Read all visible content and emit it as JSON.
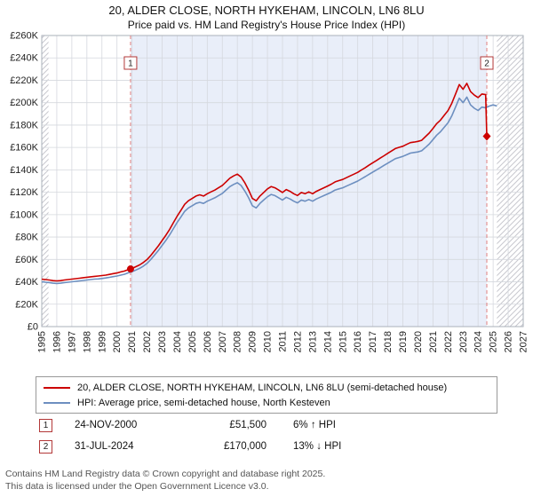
{
  "chart_data": {
    "type": "line",
    "title": "20, ALDER CLOSE, NORTH HYKEHAM, LINCOLN, LN6 8LU",
    "subtitle": "Price paid vs. HM Land Registry's House Price Index (HPI)",
    "x_range": [
      1995,
      2027
    ],
    "y_range": [
      0,
      260
    ],
    "y_unit": "GBP thousands",
    "y_tick_step": 20,
    "y_tick_labels": [
      "£0",
      "£20K",
      "£40K",
      "£60K",
      "£80K",
      "£100K",
      "£120K",
      "£140K",
      "£160K",
      "£180K",
      "£200K",
      "£220K",
      "£240K",
      "£260K"
    ],
    "x_tick_labels": [
      "1995",
      "1996",
      "1997",
      "1998",
      "1999",
      "2000",
      "2001",
      "2002",
      "2003",
      "2004",
      "2005",
      "2006",
      "2007",
      "2008",
      "2009",
      "2010",
      "2011",
      "2012",
      "2013",
      "2014",
      "2015",
      "2016",
      "2017",
      "2018",
      "2019",
      "2020",
      "2021",
      "2022",
      "2023",
      "2024",
      "2025",
      "2026",
      "2027"
    ],
    "grid": true,
    "legend_position": "bottom",
    "shaded_region": [
      2000.9,
      2024.58
    ],
    "hatched_regions": [
      [
        1995,
        1995.45
      ],
      [
        2025.25,
        2027
      ]
    ],
    "colors": {
      "property_line": "#cc0000",
      "hpi_line": "#6d8fc0",
      "shade": "#e9eef9",
      "hatch": "#c9c9cf",
      "grid": "#d5d8de",
      "plot_border": "#aab0ba",
      "dash": "#e07f7f",
      "marker": "#cc0000",
      "flag_border": "#b33838"
    },
    "series": [
      {
        "name": "20, ALDER CLOSE, NORTH HYKEHAM, LINCOLN, LN6 8LU (semi-detached house)",
        "data_name": "series-property-price",
        "color": "#cc0000",
        "x_start": 1995,
        "x_step": 0.25,
        "values": [
          42.4,
          42,
          41.6,
          41.1,
          40.8,
          41.1,
          41.6,
          42,
          42.4,
          42.8,
          43.2,
          43.7,
          44.1,
          44.5,
          44.9,
          45.2,
          45.6,
          46,
          46.6,
          47.3,
          47.9,
          48.8,
          49.6,
          50.9,
          51.9,
          53.5,
          55.1,
          57.2,
          59.9,
          63.6,
          67.8,
          72.1,
          76.9,
          81.6,
          86.9,
          92.8,
          98.6,
          103.9,
          109.2,
          112.4,
          114.5,
          116.6,
          117.7,
          116.6,
          118.7,
          120.3,
          121.9,
          124,
          126.1,
          129.3,
          132.5,
          134.6,
          136.2,
          133.6,
          128.3,
          121.9,
          114.5,
          112.4,
          116.6,
          119.8,
          123,
          125.1,
          124,
          121.9,
          119.8,
          122.4,
          120.8,
          118.7,
          117.1,
          119.8,
          118.7,
          120.3,
          118.7,
          120.8,
          122.4,
          124,
          125.6,
          127.2,
          129.3,
          130.4,
          131.4,
          133,
          134.6,
          136.2,
          137.8,
          139.9,
          142,
          144.2,
          146.3,
          148.4,
          150.5,
          152.6,
          154.8,
          156.9,
          159,
          160.1,
          161.1,
          162.7,
          164.3,
          164.8,
          165.4,
          166.4,
          169.6,
          172.8,
          177,
          181.3,
          184.4,
          188.7,
          192.9,
          199.3,
          207.8,
          216.2,
          212,
          217.3,
          209.9,
          206.7,
          204.6,
          207.8,
          207.2
        ],
        "tail": [
          [
            2024.58,
            170
          ]
        ]
      },
      {
        "name": "HPI: Average price, semi-detached house, North Kesteven",
        "data_name": "series-hpi",
        "color": "#6d8fc0",
        "x_start": 1995,
        "x_step": 0.25,
        "values": [
          40,
          39.6,
          39.2,
          38.8,
          38.5,
          38.8,
          39.2,
          39.6,
          40,
          40.4,
          40.8,
          41.2,
          41.6,
          42,
          42.4,
          42.6,
          43,
          43.4,
          44,
          44.6,
          45.2,
          46,
          46.8,
          48,
          49,
          50.5,
          52,
          54,
          56.5,
          60,
          64,
          68,
          72.5,
          77,
          82,
          87.5,
          93,
          98,
          103,
          106,
          108,
          110,
          111,
          110,
          112,
          113.5,
          115,
          117,
          119,
          122,
          125,
          127,
          128.5,
          126,
          121,
          115,
          108,
          106,
          110,
          113,
          116,
          118,
          117,
          115,
          113,
          115.5,
          114,
          112,
          110.5,
          113,
          112,
          113.5,
          112,
          114,
          115.5,
          117,
          118.5,
          120,
          122,
          123,
          124,
          125.5,
          127,
          128.5,
          130,
          132,
          134,
          136,
          138,
          140,
          142,
          144,
          146,
          148,
          150,
          151,
          152,
          153.5,
          155,
          155.5,
          156,
          157,
          160,
          163,
          167,
          171,
          174,
          178,
          182,
          188,
          196,
          204,
          200,
          205,
          198,
          195,
          193,
          196,
          195.5,
          197,
          198,
          197
        ]
      }
    ],
    "markers": [
      {
        "label": "1",
        "x": 2000.9,
        "y": 51.5,
        "shape": "circle"
      },
      {
        "label": "2",
        "x": 2024.58,
        "y": 170,
        "shape": "diamond"
      }
    ]
  },
  "legend": {
    "items": [
      {
        "label": "20, ALDER CLOSE, NORTH HYKEHAM, LINCOLN, LN6 8LU (semi-detached house)",
        "color": "#cc0000"
      },
      {
        "label": "HPI: Average price, semi-detached house, North Kesteven",
        "color": "#6d8fc0"
      }
    ]
  },
  "transactions": [
    {
      "num": "1",
      "date": "24-NOV-2000",
      "price": "£51,500",
      "delta": "6% ↑ HPI"
    },
    {
      "num": "2",
      "date": "31-JUL-2024",
      "price": "£170,000",
      "delta": "13% ↓ HPI"
    }
  ],
  "footer": {
    "line1": "Contains HM Land Registry data © Crown copyright and database right 2025.",
    "line2": "This data is licensed under the Open Government Licence v3.0."
  }
}
